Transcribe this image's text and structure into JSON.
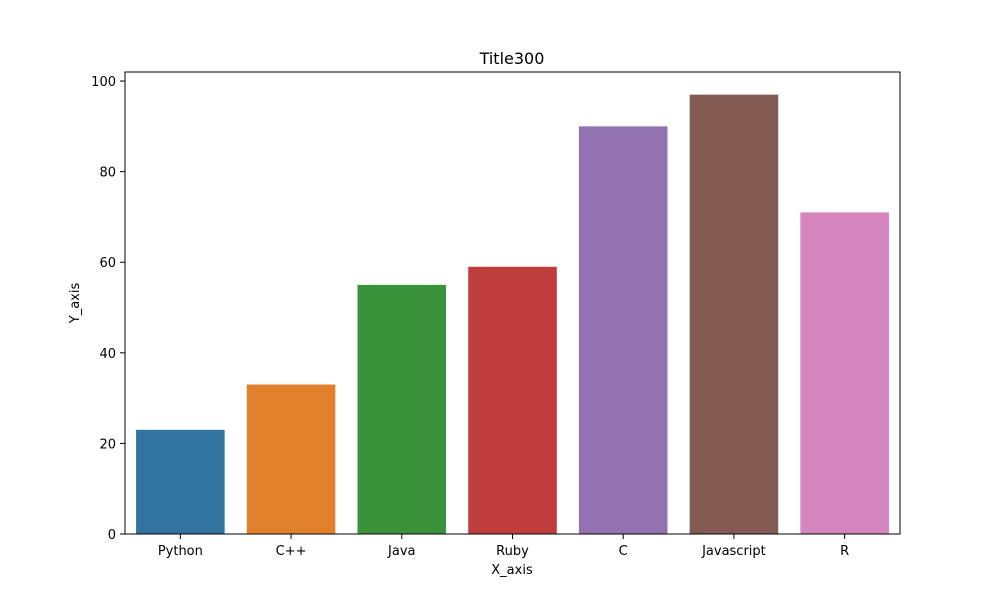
{
  "chart_data": {
    "type": "bar",
    "title": "Title300",
    "xlabel": "X_axis",
    "ylabel": "Y_axis",
    "categories": [
      "Python",
      "C++",
      "Java",
      "Ruby",
      "C",
      "Javascript",
      "R"
    ],
    "values": [
      23,
      33,
      55,
      59,
      90,
      97,
      71
    ],
    "colors": [
      "#3274a1",
      "#e1812c",
      "#3a923a",
      "#c03d3e",
      "#9372b2",
      "#845b53",
      "#d684bd"
    ],
    "ylim": [
      0,
      102
    ],
    "yticks": [
      0,
      20,
      40,
      60,
      80,
      100
    ],
    "grid": false,
    "legend": "none"
  }
}
